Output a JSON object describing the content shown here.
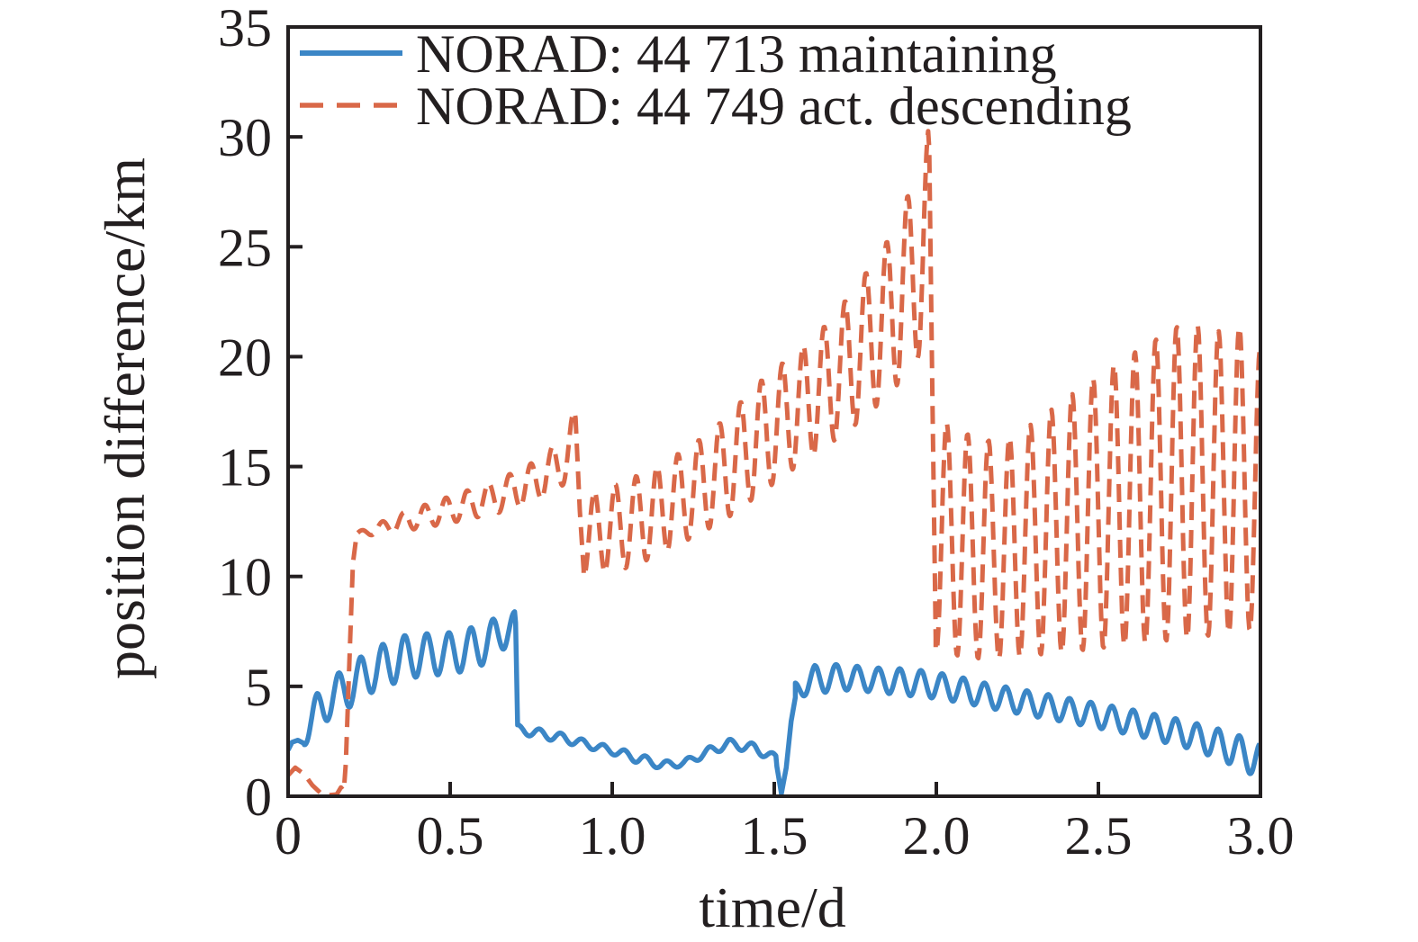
{
  "chart_data": {
    "type": "line",
    "title": "",
    "xlabel": "time/d",
    "ylabel": "position difference/km",
    "xlim": [
      0,
      3.0
    ],
    "ylim": [
      0,
      35
    ],
    "xticks": [
      0,
      0.5,
      1.0,
      1.5,
      2.0,
      2.5,
      3.0
    ],
    "xtick_labels": [
      "0",
      "0.5",
      "1.0",
      "1.5",
      "2.0",
      "2.5",
      "3.0"
    ],
    "yticks": [
      0,
      5,
      10,
      15,
      20,
      25,
      30,
      35
    ],
    "ytick_labels": [
      "0",
      "5",
      "10",
      "15",
      "20",
      "25",
      "30",
      "35"
    ],
    "grid": false,
    "legend_position": "upper left",
    "background_color": "#ffffff",
    "axis_color": "#231f20",
    "series": [
      {
        "name": "NORAD: 44 713 maintaining",
        "color": "#3b86c6",
        "style": "solid",
        "line_width": 5.5,
        "oscillation_period_d": 0.0655,
        "segments": [
          {
            "type": "line",
            "points": [
              [
                0,
                2.1
              ],
              [
                0.012,
                2.45
              ],
              [
                0.03,
                2.55
              ],
              [
                0.05,
                2.4
              ]
            ]
          },
          {
            "type": "osc",
            "t": [
              0.05,
              0.7
            ],
            "period": 0.068,
            "peak_at": 0.088,
            "upper": [
              [
                0.05,
                3.6
              ],
              [
                0.09,
                4.7
              ],
              [
                0.155,
                5.6
              ],
              [
                0.22,
                6.3
              ],
              [
                0.29,
                6.9
              ],
              [
                0.35,
                7.3
              ],
              [
                0.42,
                7.4
              ],
              [
                0.48,
                7.4
              ],
              [
                0.55,
                7.6
              ],
              [
                0.61,
                7.9
              ],
              [
                0.68,
                8.4
              ],
              [
                0.7,
                8.4
              ]
            ],
            "lower": [
              [
                0.05,
                2.3
              ],
              [
                0.125,
                3.5
              ],
              [
                0.19,
                4.05
              ],
              [
                0.255,
                4.7
              ],
              [
                0.32,
                5.1
              ],
              [
                0.385,
                5.4
              ],
              [
                0.45,
                5.5
              ],
              [
                0.515,
                5.6
              ],
              [
                0.58,
                5.8
              ],
              [
                0.645,
                6.4
              ],
              [
                0.7,
                7.2
              ]
            ]
          },
          {
            "type": "line",
            "points": [
              [
                0.702,
                7.9
              ],
              [
                0.708,
                3.25
              ]
            ]
          },
          {
            "type": "osc",
            "t": [
              0.708,
              1.505
            ],
            "period": 0.0655,
            "peak_at": 0.71,
            "upper": [
              [
                0.708,
                3.25
              ],
              [
                0.78,
                3.05
              ],
              [
                0.85,
                2.85
              ],
              [
                0.92,
                2.55
              ],
              [
                1.0,
                2.25
              ],
              [
                1.08,
                1.95
              ],
              [
                1.15,
                1.6
              ],
              [
                1.22,
                1.65
              ],
              [
                1.3,
                2.25
              ],
              [
                1.36,
                2.6
              ],
              [
                1.44,
                2.4
              ],
              [
                1.505,
                1.9
              ]
            ],
            "lower": [
              [
                0.708,
                2.85
              ],
              [
                0.79,
                2.6
              ],
              [
                0.86,
                2.4
              ],
              [
                0.93,
                2.15
              ],
              [
                1.0,
                1.9
              ],
              [
                1.08,
                1.5
              ],
              [
                1.15,
                1.25
              ],
              [
                1.22,
                1.35
              ],
              [
                1.3,
                1.85
              ],
              [
                1.36,
                2.2
              ],
              [
                1.44,
                1.95
              ],
              [
                1.505,
                1.55
              ]
            ]
          },
          {
            "type": "line",
            "points": [
              [
                1.508,
                1.35
              ],
              [
                1.522,
                0.12
              ],
              [
                1.537,
                1.3
              ],
              [
                1.552,
                3.4
              ],
              [
                1.565,
                4.5
              ]
            ]
          },
          {
            "type": "osc",
            "t": [
              1.565,
              3.0
            ],
            "period": 0.0655,
            "peak_at": 1.625,
            "upper": [
              [
                1.565,
                5.2
              ],
              [
                1.625,
                5.95
              ],
              [
                1.7,
                6.0
              ],
              [
                1.8,
                5.85
              ],
              [
                1.9,
                5.8
              ],
              [
                1.97,
                5.7
              ],
              [
                2.05,
                5.5
              ],
              [
                2.15,
                5.15
              ],
              [
                2.3,
                4.75
              ],
              [
                2.45,
                4.35
              ],
              [
                2.6,
                3.95
              ],
              [
                2.75,
                3.5
              ],
              [
                2.9,
                2.95
              ],
              [
                3.0,
                2.4
              ]
            ],
            "lower": [
              [
                1.565,
                4.5
              ],
              [
                1.63,
                4.65
              ],
              [
                1.7,
                4.85
              ],
              [
                1.8,
                4.75
              ],
              [
                1.9,
                4.6
              ],
              [
                2.0,
                4.45
              ],
              [
                2.1,
                4.2
              ],
              [
                2.2,
                3.9
              ],
              [
                2.35,
                3.5
              ],
              [
                2.5,
                3.1
              ],
              [
                2.65,
                2.65
              ],
              [
                2.8,
                2.1
              ],
              [
                2.9,
                1.5
              ],
              [
                3.0,
                0.8
              ]
            ]
          }
        ]
      },
      {
        "name": "NORAD: 44 749 act. descending",
        "color": "#d96848",
        "style": "dashed",
        "line_width": 5,
        "oscillation_period_d": 0.0655,
        "segments": [
          {
            "type": "line",
            "points": [
              [
                0,
                0.95
              ],
              [
                0.022,
                1.3
              ],
              [
                0.05,
                1.0
              ],
              [
                0.075,
                0.5
              ],
              [
                0.1,
                0.15
              ],
              [
                0.125,
                0.05
              ],
              [
                0.15,
                0.08
              ],
              [
                0.163,
                0.4
              ],
              [
                0.172,
                0.25
              ]
            ]
          },
          {
            "type": "line",
            "points": [
              [
                0.178,
                1.5
              ],
              [
                0.19,
                6.5
              ],
              [
                0.2,
                10.6
              ],
              [
                0.21,
                11.75
              ]
            ]
          },
          {
            "type": "osc",
            "t": [
              0.21,
              0.885
            ],
            "period": 0.0655,
            "peak_at": 0.225,
            "upper": [
              [
                0.21,
                12.0
              ],
              [
                0.29,
                12.5
              ],
              [
                0.37,
                13.0
              ],
              [
                0.45,
                13.4
              ],
              [
                0.53,
                13.8
              ],
              [
                0.61,
                14.2
              ],
              [
                0.69,
                14.7
              ],
              [
                0.77,
                15.3
              ],
              [
                0.83,
                16.1
              ],
              [
                0.885,
                17.6
              ]
            ],
            "lower": [
              [
                0.21,
                11.8
              ],
              [
                0.33,
                12.0
              ],
              [
                0.41,
                12.2
              ],
              [
                0.49,
                12.4
              ],
              [
                0.57,
                12.65
              ],
              [
                0.65,
                12.9
              ],
              [
                0.73,
                13.2
              ],
              [
                0.81,
                13.7
              ],
              [
                0.885,
                14.6
              ]
            ]
          },
          {
            "type": "line",
            "points": [
              [
                0.887,
                17.2
              ],
              [
                0.9,
                13.0
              ],
              [
                0.912,
                10.3
              ]
            ]
          },
          {
            "type": "osc",
            "t": [
              0.912,
              1.975
            ],
            "period": 0.0644,
            "peak_at": 0.945,
            "upper": [
              [
                0.93,
                13.8
              ],
              [
                1.05,
                14.4
              ],
              [
                1.15,
                15.1
              ],
              [
                1.25,
                16.0
              ],
              [
                1.35,
                17.2
              ],
              [
                1.45,
                18.8
              ],
              [
                1.55,
                20.0
              ],
              [
                1.65,
                21.3
              ],
              [
                1.75,
                23.1
              ],
              [
                1.85,
                25.3
              ],
              [
                1.92,
                27.6
              ],
              [
                1.945,
                28.6
              ],
              [
                1.975,
                30.3
              ]
            ],
            "lower": [
              [
                0.912,
                10.0
              ],
              [
                1.05,
                10.4
              ],
              [
                1.15,
                11.0
              ],
              [
                1.25,
                11.8
              ],
              [
                1.35,
                12.6
              ],
              [
                1.45,
                13.7
              ],
              [
                1.55,
                14.8
              ],
              [
                1.65,
                15.8
              ],
              [
                1.75,
                16.9
              ],
              [
                1.85,
                18.2
              ],
              [
                1.93,
                19.6
              ],
              [
                1.975,
                20.8
              ]
            ]
          },
          {
            "type": "line",
            "points": [
              [
                1.978,
                29.5
              ],
              [
                1.988,
                18.0
              ],
              [
                1.998,
                7.2
              ]
            ]
          },
          {
            "type": "osc",
            "t": [
              1.998,
              3.0
            ],
            "period": 0.0645,
            "peak_at": 2.032,
            "upper": [
              [
                2.03,
                17.0
              ],
              [
                2.12,
                16.3
              ],
              [
                2.2,
                16.1
              ],
              [
                2.3,
                17.0
              ],
              [
                2.4,
                18.1
              ],
              [
                2.5,
                19.2
              ],
              [
                2.6,
                20.1
              ],
              [
                2.7,
                21.0
              ],
              [
                2.78,
                21.7
              ],
              [
                2.85,
                21.0
              ],
              [
                2.92,
                21.6
              ],
              [
                3.0,
                20.4
              ]
            ],
            "lower": [
              [
                1.998,
                6.6
              ],
              [
                2.06,
                6.4
              ],
              [
                2.16,
                6.2
              ],
              [
                2.26,
                6.35
              ],
              [
                2.4,
                6.55
              ],
              [
                2.55,
                6.8
              ],
              [
                2.7,
                7.05
              ],
              [
                2.85,
                7.3
              ],
              [
                3.0,
                7.6
              ]
            ]
          }
        ]
      }
    ]
  }
}
